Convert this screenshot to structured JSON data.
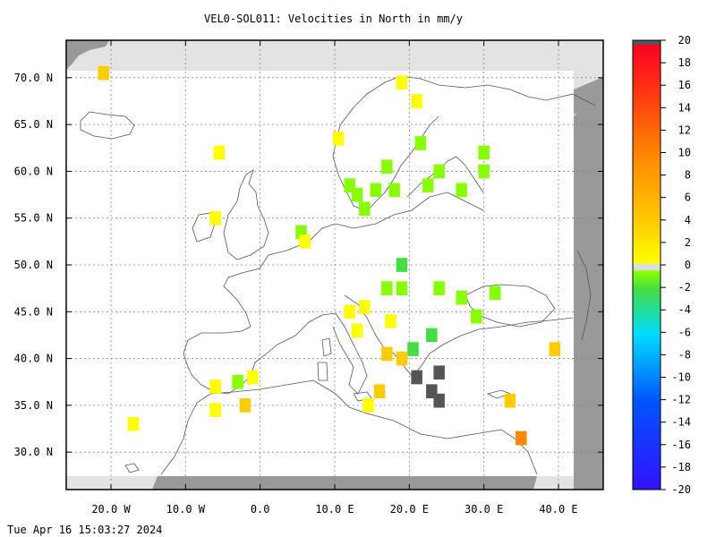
{
  "title": "VEL0-SOL011: Velocities in North in mm/y",
  "timestamp": "Tue Apr 16 15:03:27 2024",
  "chart_data": {
    "type": "heatmap",
    "title": "VEL0-SOL011: Velocities in North in mm/y",
    "xlim": [
      -26,
      46
    ],
    "ylim": [
      26,
      74
    ],
    "x_ticks": [
      {
        "value": -20,
        "label": "20.0 W"
      },
      {
        "value": -10,
        "label": "10.0 W"
      },
      {
        "value": 0,
        "label": "0.0"
      },
      {
        "value": 10,
        "label": "10.0 E"
      },
      {
        "value": 20,
        "label": "20.0 E"
      },
      {
        "value": 30,
        "label": "30.0 E"
      },
      {
        "value": 40,
        "label": "40.0 E"
      }
    ],
    "y_ticks": [
      {
        "value": 30,
        "label": "30.0 N"
      },
      {
        "value": 35,
        "label": "35.0 N"
      },
      {
        "value": 40,
        "label": "40.0 N"
      },
      {
        "value": 45,
        "label": "45.0 N"
      },
      {
        "value": 50,
        "label": "50.0 N"
      },
      {
        "value": 55,
        "label": "55.0 N"
      },
      {
        "value": 60,
        "label": "60.0 N"
      },
      {
        "value": 65,
        "label": "65.0 N"
      },
      {
        "value": 70,
        "label": "70.0 N"
      }
    ],
    "grid": true,
    "colorbar": {
      "min": -20,
      "max": 20,
      "labels": [
        20,
        18,
        16,
        14,
        12,
        10,
        8,
        6,
        4,
        2,
        0,
        -2,
        -4,
        -6,
        -8,
        -10,
        -12,
        -14,
        -16,
        -18,
        -20
      ]
    },
    "cells": [
      {
        "lon": -21,
        "lat": 70.5,
        "v": 4
      },
      {
        "lon": -5.5,
        "lat": 62,
        "v": 3
      },
      {
        "lon": -6,
        "lat": 55,
        "v": 3
      },
      {
        "lon": 5.5,
        "lat": 53.5,
        "v": -1
      },
      {
        "lon": 6,
        "lat": 52.5,
        "v": 2
      },
      {
        "lon": 10.5,
        "lat": 63.5,
        "v": 2
      },
      {
        "lon": 12,
        "lat": 58.5,
        "v": -1
      },
      {
        "lon": 13,
        "lat": 57.5,
        "v": -1
      },
      {
        "lon": 15.5,
        "lat": 58,
        "v": -1
      },
      {
        "lon": 17,
        "lat": 60.5,
        "v": -1
      },
      {
        "lon": 18,
        "lat": 58,
        "v": -1
      },
      {
        "lon": 14,
        "lat": 56,
        "v": -1
      },
      {
        "lon": 19,
        "lat": 69.5,
        "v": 2
      },
      {
        "lon": 21,
        "lat": 67.5,
        "v": 2
      },
      {
        "lon": 21.5,
        "lat": 63,
        "v": -1
      },
      {
        "lon": 24,
        "lat": 60,
        "v": -1
      },
      {
        "lon": 22.5,
        "lat": 58.5,
        "v": -1
      },
      {
        "lon": 27,
        "lat": 58,
        "v": -1
      },
      {
        "lon": 30,
        "lat": 62,
        "v": -1
      },
      {
        "lon": 30,
        "lat": 60,
        "v": -1
      },
      {
        "lon": 19,
        "lat": 50,
        "v": -3
      },
      {
        "lon": 17,
        "lat": 47.5,
        "v": -1
      },
      {
        "lon": 19,
        "lat": 47.5,
        "v": -1
      },
      {
        "lon": 24,
        "lat": 47.5,
        "v": -1
      },
      {
        "lon": 27,
        "lat": 46.5,
        "v": -1
      },
      {
        "lon": 31.5,
        "lat": 47,
        "v": -1
      },
      {
        "lon": 29,
        "lat": 44.5,
        "v": -1
      },
      {
        "lon": 12,
        "lat": 45,
        "v": 2
      },
      {
        "lon": 14,
        "lat": 45.5,
        "v": 3
      },
      {
        "lon": 13,
        "lat": 43,
        "v": 2
      },
      {
        "lon": 17.5,
        "lat": 44,
        "v": 2
      },
      {
        "lon": 17,
        "lat": 40.5,
        "v": 5
      },
      {
        "lon": 19,
        "lat": 40,
        "v": 4
      },
      {
        "lon": 20.5,
        "lat": 41,
        "v": -3
      },
      {
        "lon": 23,
        "lat": 42.5,
        "v": -2
      },
      {
        "lon": 16,
        "lat": 36.5,
        "v": 5
      },
      {
        "lon": 14.5,
        "lat": 35,
        "v": 3
      },
      {
        "lon": 39.5,
        "lat": 41,
        "v": 4
      },
      {
        "lon": 33.5,
        "lat": 35.5,
        "v": 4
      },
      {
        "lon": 35,
        "lat": 31.5,
        "v": 7
      },
      {
        "lon": -3,
        "lat": 37.5,
        "v": -1
      },
      {
        "lon": -1,
        "lat": 38,
        "v": 3
      },
      {
        "lon": -6,
        "lat": 37,
        "v": 3
      },
      {
        "lon": -6,
        "lat": 34.5,
        "v": 3
      },
      {
        "lon": -2,
        "lat": 35,
        "v": 4
      },
      {
        "lon": -17,
        "lat": 33,
        "v": 3
      }
    ],
    "no_data_cells": [
      {
        "lon": 21,
        "lat": 38,
        "v": null
      },
      {
        "lon": 24,
        "lat": 38.5,
        "v": null
      },
      {
        "lon": 23,
        "lat": 36.5,
        "v": null
      },
      {
        "lon": 24,
        "lat": 35.5,
        "v": null
      }
    ]
  }
}
